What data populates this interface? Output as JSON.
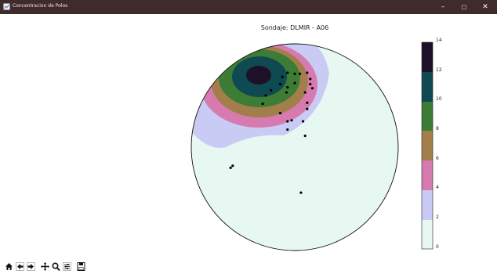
{
  "window": {
    "title": "Concentracion de Polos",
    "min_glyph": "–",
    "max_glyph": "□",
    "close_glyph": "✕"
  },
  "plot": {
    "title": "Sondaje: DLMIR - A06"
  },
  "colorbar": {
    "ticks": [
      "0",
      "2",
      "4",
      "6",
      "8",
      "10",
      "12",
      "14"
    ],
    "colors": [
      "#e6f8f1",
      "#c9cbf4",
      "#d77ab0",
      "#a27e4a",
      "#3d7c35",
      "#0f4a52",
      "#1c1128"
    ]
  },
  "poles": [
    [
      -0.12,
      -0.68
    ],
    [
      -0.07,
      -0.72
    ],
    [
      0.0,
      -0.71
    ],
    [
      0.05,
      -0.71
    ],
    [
      0.12,
      -0.72
    ],
    [
      0.15,
      -0.66
    ],
    [
      -0.14,
      -0.61
    ],
    [
      0.15,
      -0.61
    ],
    [
      0.17,
      -0.57
    ],
    [
      0.0,
      -0.62
    ],
    [
      -0.07,
      -0.58
    ],
    [
      -0.23,
      -0.55
    ],
    [
      0.1,
      -0.53
    ],
    [
      0.12,
      -0.43
    ],
    [
      0.12,
      -0.37
    ],
    [
      -0.14,
      -0.33
    ],
    [
      -0.07,
      -0.25
    ],
    [
      -0.03,
      -0.26
    ],
    [
      0.08,
      -0.25
    ],
    [
      -0.31,
      -0.42
    ],
    [
      -0.07,
      -0.17
    ],
    [
      0.1,
      -0.11
    ],
    [
      -0.6,
      0.18
    ],
    [
      -0.62,
      0.2
    ],
    [
      0.06,
      0.44
    ],
    [
      -0.08,
      -0.53
    ],
    [
      -0.28,
      -0.5
    ]
  ],
  "toolbar": {
    "items": [
      "home",
      "back",
      "forward",
      "pan",
      "zoom",
      "configure-subplots",
      "save"
    ]
  }
}
